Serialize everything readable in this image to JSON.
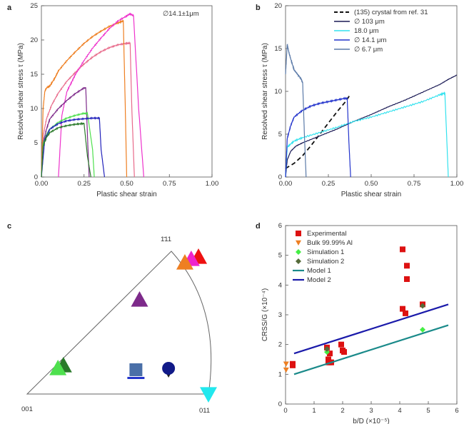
{
  "panels": {
    "a": {
      "label": "a"
    },
    "b": {
      "label": "b"
    },
    "c": {
      "label": "c"
    },
    "d": {
      "label": "d"
    }
  },
  "chart_data": [
    {
      "panel": "a",
      "type": "line",
      "annotation": "∅14.1±1μm",
      "xlabel": "Plastic shear strain",
      "ylabel": "Resolved shear stress τ (MPa)",
      "xlim": [
        0,
        1
      ],
      "ylim": [
        0,
        25
      ],
      "xticks": [
        "0.00",
        "0.25",
        "0.50",
        "0.75",
        "1.00"
      ],
      "yticks": [
        "0",
        "5",
        "10",
        "15",
        "20",
        "25"
      ],
      "series": [
        {
          "color": "#e86a8a",
          "x": [
            0,
            0.01,
            0.03,
            0.06,
            0.1,
            0.15,
            0.2,
            0.25,
            0.3,
            0.35,
            0.4,
            0.45,
            0.5,
            0.52,
            0.53,
            0.545
          ],
          "y": [
            0,
            6,
            8.5,
            10.5,
            12.3,
            14,
            15.3,
            16.5,
            17.5,
            18.3,
            18.9,
            19.3,
            19.5,
            19.5,
            10,
            0
          ]
        },
        {
          "color": "#ee7f22",
          "x": [
            0,
            0.01,
            0.02,
            0.03,
            0.05,
            0.08,
            0.1,
            0.15,
            0.2,
            0.25,
            0.3,
            0.35,
            0.4,
            0.45,
            0.48,
            0.49,
            0.5
          ],
          "y": [
            0,
            10,
            12.5,
            13,
            13.3,
            14.5,
            15.5,
            17,
            18.3,
            19.5,
            20.5,
            21.3,
            22,
            22.5,
            22.8,
            12,
            0
          ]
        },
        {
          "color": "#ee33cc",
          "x": [
            0.1,
            0.12,
            0.15,
            0.18,
            0.2,
            0.25,
            0.3,
            0.35,
            0.4,
            0.45,
            0.5,
            0.52,
            0.54,
            0.57,
            0.6
          ],
          "y": [
            0,
            9,
            12.5,
            14,
            15,
            17,
            18.8,
            20.3,
            21.7,
            22.8,
            23.5,
            23.8,
            23.5,
            10,
            0
          ]
        },
        {
          "color": "#7d2a8a",
          "x": [
            0,
            0.01,
            0.03,
            0.05,
            0.1,
            0.15,
            0.2,
            0.25,
            0.26,
            0.27,
            0.28
          ],
          "y": [
            0,
            5,
            7,
            8.5,
            10,
            11.2,
            12.2,
            13,
            13,
            6,
            0
          ]
        },
        {
          "color": "#4ee04e",
          "x": [
            0,
            0.01,
            0.03,
            0.05,
            0.1,
            0.15,
            0.2,
            0.25,
            0.27,
            0.3,
            0.31
          ],
          "y": [
            0,
            4.8,
            6.2,
            7,
            8,
            8.6,
            9,
            9.3,
            9.3,
            4,
            0
          ]
        },
        {
          "color": "#2222bb",
          "x": [
            0,
            0.02,
            0.05,
            0.1,
            0.15,
            0.2,
            0.25,
            0.3,
            0.34,
            0.35,
            0.37
          ],
          "y": [
            0,
            5.5,
            7,
            7.8,
            8.2,
            8.4,
            8.5,
            8.6,
            8.6,
            4,
            0
          ]
        },
        {
          "color": "#2a7a2a",
          "x": [
            0,
            0.01,
            0.03,
            0.05,
            0.1,
            0.15,
            0.2,
            0.24,
            0.25,
            0.27,
            0.29
          ],
          "y": [
            0,
            4.5,
            5.8,
            6.5,
            7.2,
            7.5,
            7.7,
            7.8,
            7.8,
            3,
            0
          ]
        }
      ]
    },
    {
      "panel": "b",
      "type": "line",
      "xlabel": "Plastic shear strain",
      "ylabel": "Resolved shear stress τ (MPa)",
      "xlim": [
        0,
        1
      ],
      "ylim": [
        0,
        20
      ],
      "xticks": [
        "0.00",
        "0.25",
        "0.50",
        "0.75",
        "1.00"
      ],
      "yticks": [
        "0",
        "5",
        "10",
        "15",
        "20"
      ],
      "series": [
        {
          "name": "(135) crystal from ref. 31",
          "color": "#111111",
          "dashed": true,
          "x": [
            0,
            0.05,
            0.1,
            0.15,
            0.2,
            0.25,
            0.3,
            0.35,
            0.38
          ],
          "y": [
            1,
            1.6,
            2.5,
            3.7,
            5,
            6.3,
            7.6,
            8.8,
            9.7
          ]
        },
        {
          "name": "∅ 103 μm",
          "color": "#1a1a55",
          "x": [
            0,
            0.01,
            0.03,
            0.06,
            0.1,
            0.2,
            0.3,
            0.4,
            0.5,
            0.6,
            0.7,
            0.8,
            0.9,
            0.95,
            1.0
          ],
          "y": [
            0,
            2,
            3,
            3.6,
            4,
            4.8,
            5.6,
            6.5,
            7.3,
            8.2,
            9.0,
            9.9,
            10.8,
            11.4,
            11.9
          ]
        },
        {
          "name": "18.0 μm",
          "color": "#33e2ee",
          "x": [
            0,
            0.01,
            0.05,
            0.1,
            0.2,
            0.3,
            0.4,
            0.5,
            0.6,
            0.7,
            0.8,
            0.9,
            0.93,
            0.94,
            0.95
          ],
          "y": [
            0,
            3.5,
            4.2,
            4.6,
            5.2,
            5.8,
            6.5,
            7,
            7.6,
            8.2,
            8.8,
            9.6,
            9.8,
            5,
            0
          ]
        },
        {
          "name": "∅ 14.1 μm",
          "color": "#2233cc",
          "x": [
            0,
            0.01,
            0.03,
            0.05,
            0.1,
            0.15,
            0.2,
            0.25,
            0.3,
            0.35,
            0.36,
            0.37,
            0.38
          ],
          "y": [
            0,
            4.5,
            6,
            7,
            7.8,
            8.3,
            8.6,
            8.8,
            9,
            9.2,
            9.2,
            4,
            0
          ]
        },
        {
          "name": "∅ 6.7 μm",
          "color": "#5b7aa8",
          "x": [
            0,
            0.01,
            0.02,
            0.03,
            0.05,
            0.07,
            0.09,
            0.1,
            0.11,
            0.12
          ],
          "y": [
            12,
            15.5,
            14.5,
            13.8,
            12.5,
            12,
            11.5,
            11,
            5,
            0
          ]
        }
      ]
    },
    {
      "panel": "c",
      "type": "scatter",
      "corner_labels": {
        "pole_001": "001",
        "pole_011": "011",
        "pole_111": "1̄11"
      },
      "points": [
        {
          "marker": "triangle-up",
          "color": "#ee1111",
          "u": 0.945,
          "v": 0.96
        },
        {
          "marker": "triangle-up",
          "color": "#ee22cc",
          "u": 0.905,
          "v": 0.945
        },
        {
          "marker": "triangle-up",
          "color": "#ee7f22",
          "u": 0.87,
          "v": 0.92
        },
        {
          "marker": "triangle-up",
          "color": "#7d2a8a",
          "u": 0.62,
          "v": 0.66
        },
        {
          "marker": "triangle-up",
          "color": "#2a7a2a",
          "u": 0.2,
          "v": 0.2
        },
        {
          "marker": "triangle-up",
          "color": "#4ee04e",
          "u": 0.17,
          "v": 0.18
        },
        {
          "marker": "square",
          "color": "#4a6fa8",
          "u": 0.6,
          "v": 0.17
        },
        {
          "marker": "circle",
          "color": "#111a88",
          "u": 0.78,
          "v": 0.18
        },
        {
          "marker": "triangle-down",
          "color": "#22e8ee",
          "u": 1.0,
          "v": 0.0
        }
      ]
    },
    {
      "panel": "d",
      "type": "scatter",
      "xlabel": "b/D (×10⁻⁵)",
      "ylabel": "CRSS/G (×10⁻⁴)",
      "xlim": [
        0,
        6
      ],
      "ylim": [
        0,
        6
      ],
      "xticks": [
        "0",
        "1",
        "2",
        "3",
        "4",
        "5",
        "6"
      ],
      "yticks": [
        "0",
        "1",
        "2",
        "3",
        "4",
        "5",
        "6"
      ],
      "series": [
        {
          "name": "Experimental",
          "marker": "square",
          "color": "#dd1111",
          "x": [
            0.25,
            0.25,
            1.45,
            1.5,
            1.5,
            1.55,
            1.55,
            1.6,
            1.95,
            2.0,
            2.05,
            4.1,
            4.1,
            4.2,
            4.25,
            4.25,
            4.8
          ],
          "y": [
            1.3,
            1.35,
            1.9,
            1.5,
            1.4,
            1.7,
            1.4,
            1.4,
            2.0,
            1.8,
            1.75,
            5.2,
            3.2,
            3.05,
            4.65,
            4.2,
            3.35
          ]
        },
        {
          "name": "Bulk 99.99% Al",
          "marker": "triangle-down",
          "color": "#ee7f22",
          "x": [
            0.02,
            0.02
          ],
          "y": [
            1.35,
            1.15
          ]
        },
        {
          "name": "Simulation 1",
          "marker": "diamond",
          "color": "#44ee44",
          "x": [
            1.45,
            4.8
          ],
          "y": [
            1.75,
            2.5
          ]
        },
        {
          "name": "Simulation 2",
          "marker": "diamond",
          "color": "#556b3a",
          "x": [
            1.45,
            4.8
          ],
          "y": [
            1.85,
            3.3
          ]
        },
        {
          "name": "Model 1",
          "type": "line",
          "color": "#1a8a8a",
          "x": [
            0.3,
            5.7
          ],
          "y": [
            1.0,
            2.65
          ]
        },
        {
          "name": "Model 2",
          "type": "line",
          "color": "#1a1aaa",
          "x": [
            0.3,
            5.7
          ],
          "y": [
            1.7,
            3.35
          ]
        }
      ]
    }
  ]
}
